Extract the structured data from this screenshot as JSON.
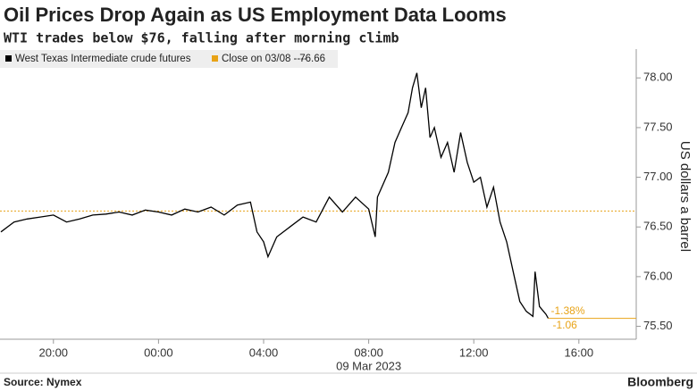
{
  "chart_data": {
    "type": "line",
    "title": "Oil Prices Drop Again as US Employment Data Looms",
    "subtitle": "WTI trades below $76, falling after morning climb",
    "y_label": "US dollars a barrel",
    "x_date_label": "09 Mar 2023",
    "source": "Source: Nymex",
    "brand": "Bloomberg",
    "x": [
      "2023-03-08T18:00",
      "2023-03-08T18:30",
      "2023-03-08T19:00",
      "2023-03-08T19:30",
      "2023-03-08T20:00",
      "2023-03-08T20:30",
      "2023-03-08T21:00",
      "2023-03-08T21:30",
      "2023-03-08T22:00",
      "2023-03-08T22:30",
      "2023-03-08T23:00",
      "2023-03-08T23:30",
      "2023-03-09T00:00",
      "2023-03-09T00:30",
      "2023-03-09T01:00",
      "2023-03-09T01:30",
      "2023-03-09T02:00",
      "2023-03-09T02:30",
      "2023-03-09T03:00",
      "2023-03-09T03:30",
      "2023-03-09T03:45",
      "2023-03-09T04:00",
      "2023-03-09T04:10",
      "2023-03-09T04:30",
      "2023-03-09T05:00",
      "2023-03-09T05:30",
      "2023-03-09T06:00",
      "2023-03-09T06:30",
      "2023-03-09T07:00",
      "2023-03-09T07:30",
      "2023-03-09T08:00",
      "2023-03-09T08:15",
      "2023-03-09T08:20",
      "2023-03-09T08:45",
      "2023-03-09T09:00",
      "2023-03-09T09:15",
      "2023-03-09T09:30",
      "2023-03-09T09:40",
      "2023-03-09T09:50",
      "2023-03-09T10:00",
      "2023-03-09T10:10",
      "2023-03-09T10:20",
      "2023-03-09T10:30",
      "2023-03-09T10:45",
      "2023-03-09T11:00",
      "2023-03-09T11:15",
      "2023-03-09T11:30",
      "2023-03-09T11:45",
      "2023-03-09T12:00",
      "2023-03-09T12:15",
      "2023-03-09T12:30",
      "2023-03-09T12:45",
      "2023-03-09T13:00",
      "2023-03-09T13:15",
      "2023-03-09T13:30",
      "2023-03-09T13:45",
      "2023-03-09T14:00",
      "2023-03-09T14:15",
      "2023-03-09T14:20",
      "2023-03-09T14:30",
      "2023-03-09T14:45",
      "2023-03-09T14:50"
    ],
    "series": [
      {
        "name": "West Texas Intermediate crude futures",
        "color": "#000000",
        "values": [
          76.45,
          76.55,
          76.58,
          76.6,
          76.62,
          76.55,
          76.58,
          76.62,
          76.63,
          76.65,
          76.62,
          76.67,
          76.65,
          76.62,
          76.68,
          76.65,
          76.7,
          76.62,
          76.72,
          76.75,
          76.45,
          76.35,
          76.2,
          76.4,
          76.5,
          76.6,
          76.55,
          76.8,
          76.65,
          76.8,
          76.68,
          76.4,
          76.8,
          77.05,
          77.35,
          77.5,
          77.65,
          77.9,
          78.05,
          77.7,
          77.9,
          77.4,
          77.5,
          77.2,
          77.35,
          77.05,
          77.45,
          77.15,
          76.95,
          77.0,
          76.7,
          76.9,
          76.55,
          76.35,
          76.05,
          75.75,
          75.65,
          75.6,
          76.05,
          75.7,
          75.62,
          75.58
        ]
      }
    ],
    "reference": {
      "label": "Close on 03/08 ----",
      "value": 76.66,
      "color": "#e8a317"
    },
    "annotations": [
      "-1.38%",
      "-1.06"
    ],
    "xlim": [
      "2023-03-08T17:58",
      "2023-03-09T18:11"
    ],
    "xticks": [
      {
        "value": "2023-03-08T20:00",
        "label": "20:00"
      },
      {
        "value": "2023-03-09T00:00",
        "label": "00:00"
      },
      {
        "value": "2023-03-09T04:00",
        "label": "04:00"
      },
      {
        "value": "2023-03-09T08:00",
        "label": "08:00"
      },
      {
        "value": "2023-03-09T12:00",
        "label": "12:00"
      },
      {
        "value": "2023-03-09T16:00",
        "label": "16:00"
      }
    ],
    "ylim": [
      75.37,
      78.29
    ],
    "yticks": [
      {
        "value": 75.5,
        "label": "75.50"
      },
      {
        "value": 76,
        "label": "76.00"
      },
      {
        "value": 76.5,
        "label": "76.50"
      },
      {
        "value": 77,
        "label": "77.00"
      },
      {
        "value": 77.5,
        "label": "77.50"
      },
      {
        "value": 78,
        "label": "78.00"
      }
    ]
  }
}
